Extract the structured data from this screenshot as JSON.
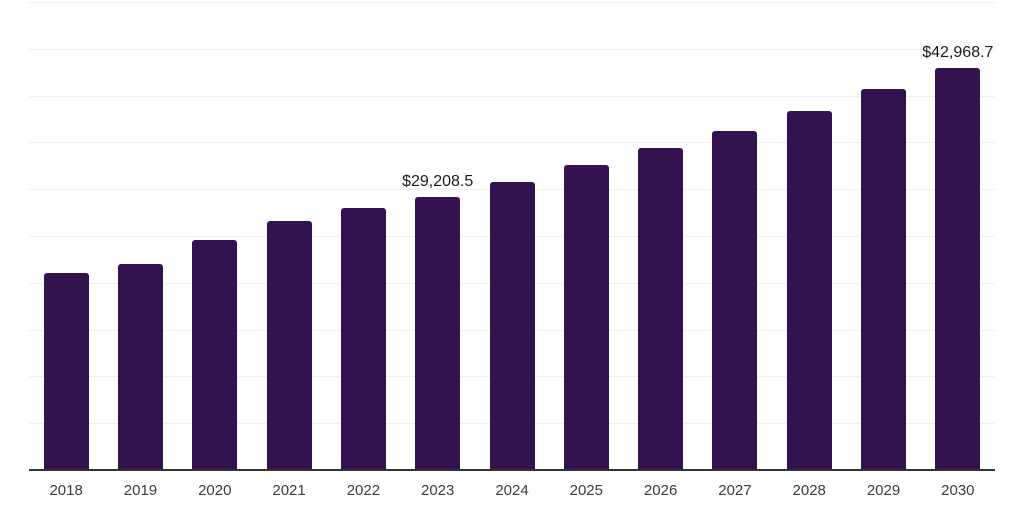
{
  "chart_data": {
    "type": "bar",
    "title": "",
    "xlabel": "",
    "ylabel": "",
    "categories": [
      "2018",
      "2019",
      "2020",
      "2021",
      "2022",
      "2023",
      "2024",
      "2025",
      "2026",
      "2027",
      "2028",
      "2029",
      "2030"
    ],
    "values": [
      21100,
      22000,
      24600,
      26650,
      27950,
      29208.5,
      30800,
      32550,
      34350,
      36250,
      38400,
      40750,
      42968.7
    ],
    "value_labels": [
      {
        "category": "2023",
        "text": "$29,208.5"
      },
      {
        "category": "2030",
        "text": "$42,968.7"
      }
    ],
    "ylim": [
      0,
      50000
    ],
    "grid_step": 5000,
    "grid": true,
    "legend": false,
    "bar_color": "#33124f",
    "axis_color": "#333333",
    "gridline_color": "#f0f0f0",
    "tick_label_color": "#3c3c3c",
    "value_label_color": "#1a1a1a",
    "background_color": "#ffffff"
  }
}
